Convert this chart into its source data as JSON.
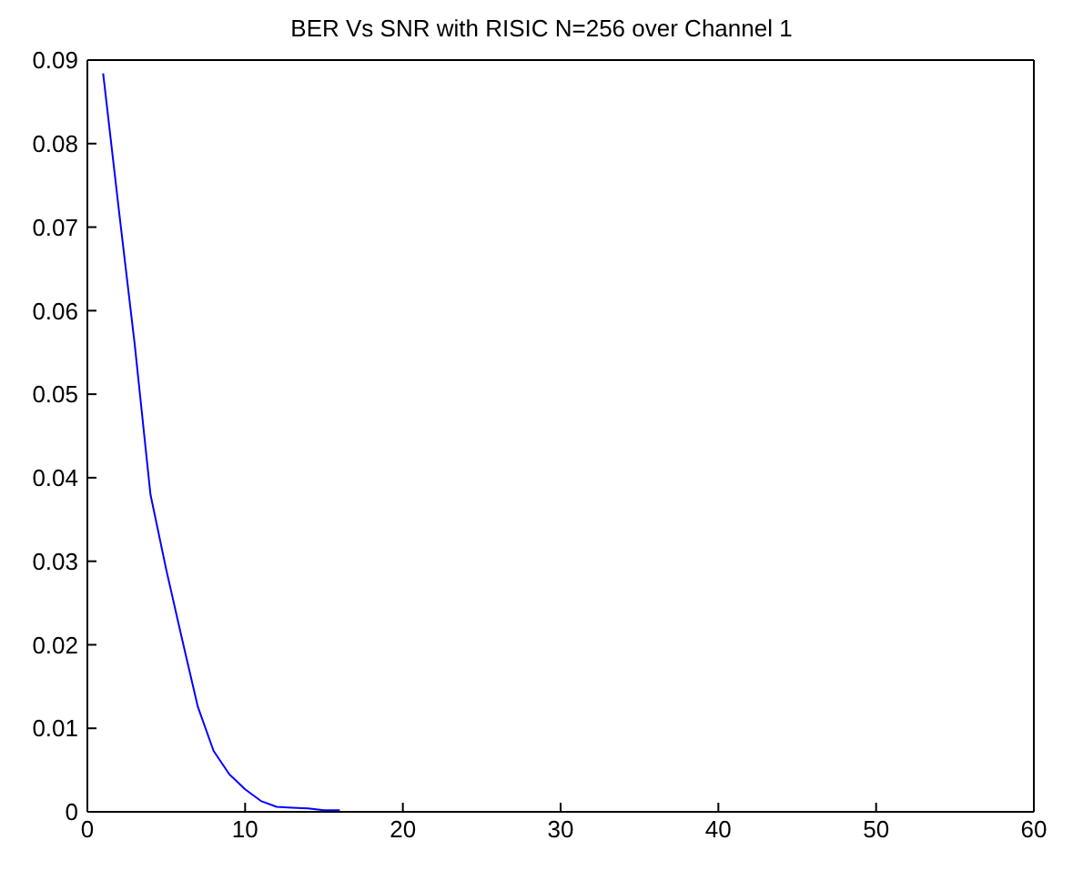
{
  "chart_data": {
    "type": "line",
    "title": "BER Vs SNR with RISIC N=256 over Channel 1",
    "x": [
      1,
      2,
      3,
      4,
      5,
      6,
      7,
      8,
      9,
      10,
      11,
      12,
      13,
      14,
      15,
      16
    ],
    "series": [
      {
        "color": "#0000ff",
        "values": [
          0.0884,
          0.072,
          0.056,
          0.038,
          0.029,
          0.0207,
          0.0126,
          0.0073,
          0.0045,
          0.0027,
          0.0013,
          0.0006,
          0.0005,
          0.0004,
          0.0002,
          0.0002
        ]
      }
    ],
    "xlim": [
      0,
      60
    ],
    "xticks": [
      0,
      10,
      20,
      30,
      40,
      50,
      60
    ],
    "ylim": [
      0,
      0.09
    ],
    "yticks": [
      0,
      0.01,
      0.02,
      0.03,
      0.04,
      0.05,
      0.06,
      0.07,
      0.08,
      0.09
    ],
    "grid": false,
    "legend": false,
    "marker": "none",
    "line_style": "solid"
  }
}
